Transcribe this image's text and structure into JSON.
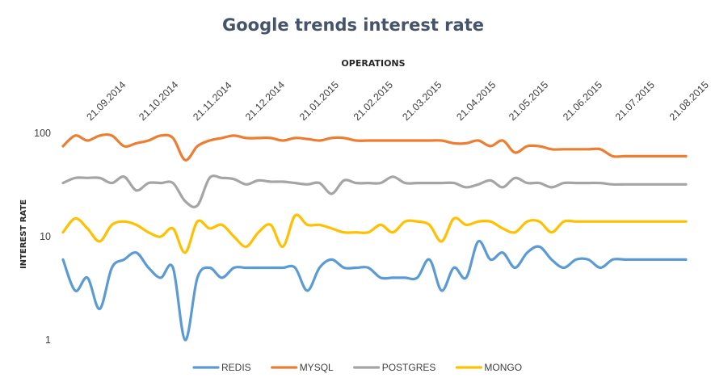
{
  "chart_data": {
    "type": "line",
    "title": "Google trends interest rate",
    "xlabel": "OPERATIONS",
    "ylabel": "INTEREST RATE",
    "yscale": "log",
    "ylim": [
      1,
      100
    ],
    "yticks": [
      1,
      10,
      100
    ],
    "xlim": [
      "2014-09-07",
      "2015-08-30"
    ],
    "x_tick_labels": [
      "21.09.2014",
      "21.10.2014",
      "21.11.2014",
      "21.12.2014",
      "21.01.2015",
      "21.02.2015",
      "21.03.2015",
      "21.04.2015",
      "21.05.2015",
      "21.06.2015",
      "21.07.2015",
      "21.08.2015"
    ],
    "x_tick_dates": [
      "2014-09-21",
      "2014-10-21",
      "2014-11-21",
      "2014-12-21",
      "2015-01-21",
      "2015-02-21",
      "2015-03-21",
      "2015-04-21",
      "2015-05-21",
      "2015-06-21",
      "2015-07-21",
      "2015-08-21"
    ],
    "grid": false,
    "legend_position": "bottom",
    "x": [
      "2014-09-07",
      "2014-09-14",
      "2014-09-21",
      "2014-09-28",
      "2014-10-05",
      "2014-10-12",
      "2014-10-19",
      "2014-10-26",
      "2014-11-02",
      "2014-11-09",
      "2014-11-16",
      "2014-11-23",
      "2014-11-30",
      "2014-12-07",
      "2014-12-14",
      "2014-12-21",
      "2014-12-28",
      "2015-01-04",
      "2015-01-11",
      "2015-01-18",
      "2015-01-25",
      "2015-02-01",
      "2015-02-08",
      "2015-02-15",
      "2015-02-22",
      "2015-03-01",
      "2015-03-08",
      "2015-03-15",
      "2015-03-22",
      "2015-03-29",
      "2015-04-05",
      "2015-04-12",
      "2015-04-19",
      "2015-04-26",
      "2015-05-03",
      "2015-05-10",
      "2015-05-17",
      "2015-05-24",
      "2015-05-31",
      "2015-06-07",
      "2015-06-14",
      "2015-06-21",
      "2015-06-28",
      "2015-07-05",
      "2015-07-12",
      "2015-07-19",
      "2015-07-26",
      "2015-08-02",
      "2015-08-09",
      "2015-08-16",
      "2015-08-23",
      "2015-08-30"
    ],
    "series": [
      {
        "name": "REDIS",
        "color": "#5b9bd5",
        "values": [
          6,
          3,
          4,
          2,
          5,
          6,
          7,
          5,
          4,
          5,
          1,
          4,
          5,
          4,
          5,
          5,
          5,
          5,
          5,
          5,
          3,
          5,
          6,
          5,
          5,
          5,
          4,
          4,
          4,
          4,
          6,
          3,
          5,
          4,
          9,
          6,
          7,
          5,
          7,
          8,
          6,
          5,
          6,
          6,
          5,
          6,
          6,
          6,
          6,
          6,
          6,
          6
        ]
      },
      {
        "name": "MYSQL",
        "color": "#ed7d31",
        "values": [
          75,
          95,
          85,
          95,
          95,
          75,
          80,
          85,
          95,
          90,
          55,
          75,
          85,
          90,
          95,
          90,
          90,
          90,
          85,
          90,
          88,
          85,
          90,
          90,
          85,
          85,
          85,
          85,
          85,
          85,
          85,
          85,
          80,
          80,
          85,
          75,
          85,
          65,
          75,
          75,
          70,
          70,
          70,
          70,
          70,
          60,
          60,
          60,
          60,
          60,
          60,
          60
        ]
      },
      {
        "name": "POSTGRES",
        "color": "#a5a5a5",
        "values": [
          33,
          37,
          37,
          37,
          33,
          38,
          28,
          33,
          33,
          33,
          22,
          20,
          37,
          37,
          36,
          32,
          35,
          34,
          34,
          33,
          32,
          33,
          26,
          35,
          33,
          33,
          33,
          38,
          33,
          33,
          33,
          33,
          33,
          30,
          32,
          35,
          30,
          37,
          33,
          33,
          30,
          33,
          33,
          33,
          33,
          32,
          32,
          32,
          32,
          32,
          32,
          32
        ]
      },
      {
        "name": "MONGO",
        "color": "#ffc000",
        "values": [
          11,
          15,
          12,
          9,
          13,
          14,
          13,
          11,
          10,
          12,
          7,
          14,
          12,
          13,
          10,
          8,
          11,
          13,
          8,
          16,
          13,
          13,
          12,
          11,
          11,
          11,
          13,
          11,
          14,
          14,
          13,
          9,
          15,
          13,
          14,
          14,
          12,
          11,
          14,
          14,
          11,
          14,
          14,
          14,
          14,
          14,
          14,
          14,
          14,
          14,
          14,
          14
        ]
      }
    ]
  }
}
